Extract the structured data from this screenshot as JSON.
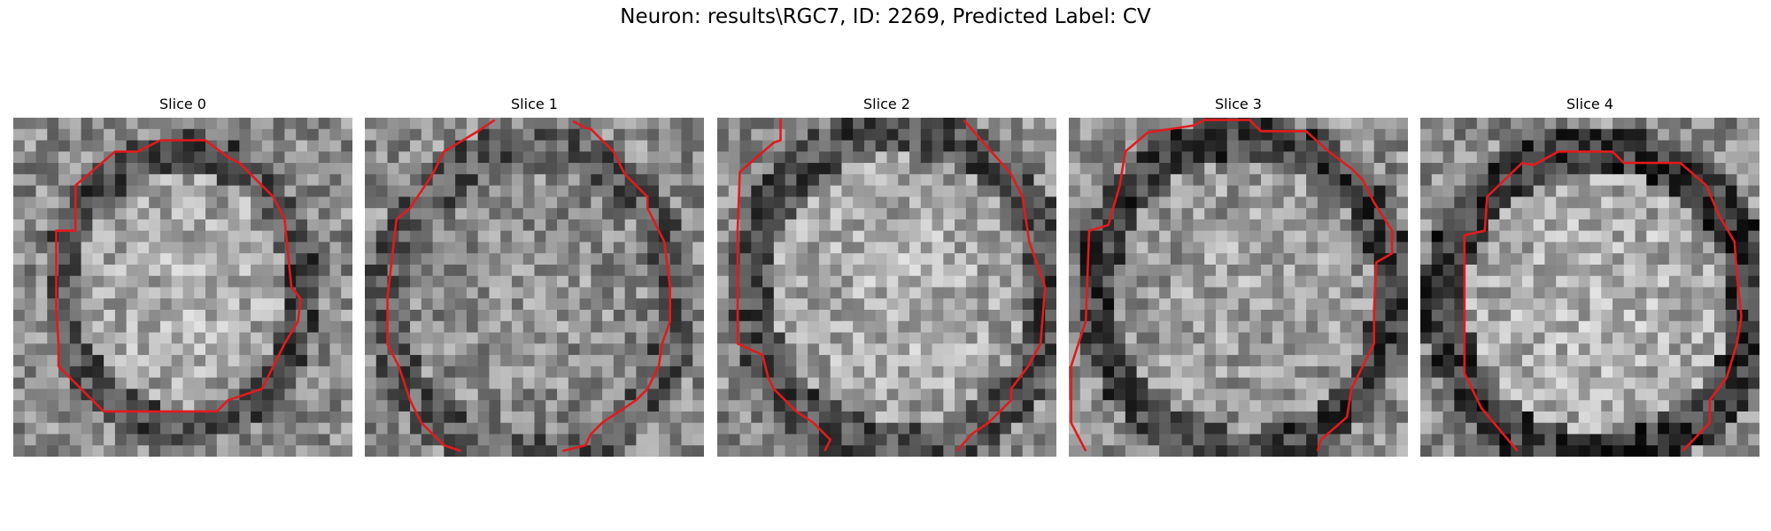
{
  "figure": {
    "title": "Neuron: results\\RGC7, ID: 2269, Predicted Label: CV",
    "contour_color": "#e31a1c",
    "colormap": "gray"
  },
  "slices": [
    {
      "label": "Slice 0"
    },
    {
      "label": "Slice 1"
    },
    {
      "label": "Slice 2"
    },
    {
      "label": "Slice 3"
    },
    {
      "label": "Slice 4"
    }
  ]
}
